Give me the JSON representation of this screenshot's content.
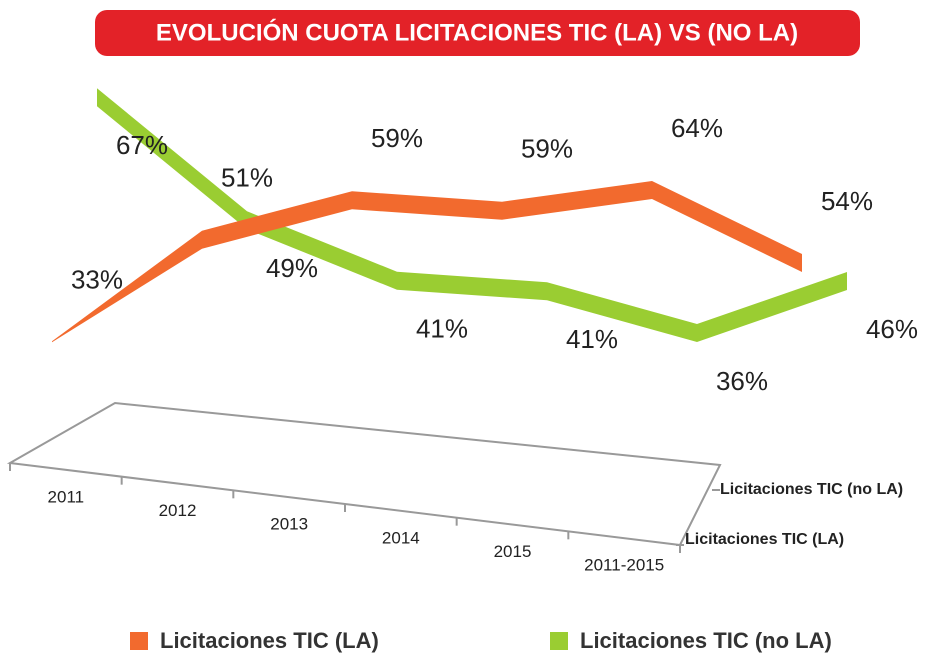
{
  "chart_data": {
    "type": "line3d",
    "title": "EVOLUCIÓN CUOTA LICITACIONES TIC (LA) VS (NO LA)",
    "categories": [
      "2011",
      "2012",
      "2013",
      "2014",
      "2015",
      "2011-2015"
    ],
    "series": [
      {
        "name": "Licitaciones TIC (LA)",
        "color": "#f26a2e",
        "values": [
          33,
          51,
          59,
          59,
          64,
          54
        ],
        "value_labels": [
          "33%",
          "51%",
          "59%",
          "59%",
          "64%",
          "54%"
        ]
      },
      {
        "name": "Licitaciones TIC (no LA)",
        "color": "#9acd32",
        "values": [
          67,
          49,
          41,
          41,
          36,
          46
        ],
        "value_labels": [
          "67%",
          "49%",
          "41%",
          "41%",
          "36%",
          "46%"
        ]
      }
    ],
    "legend": "bottom"
  }
}
